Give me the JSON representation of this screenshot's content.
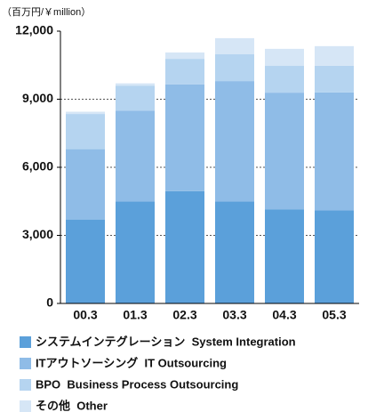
{
  "chart_data": {
    "type": "stacked_bar",
    "y_label": "（百万円/￥million）",
    "categories": [
      "00.3",
      "01.3",
      "02.3",
      "03.3",
      "04.3",
      "05.3"
    ],
    "series": [
      {
        "name": "システムインテグレーション  System Integration",
        "color": "#5ba0da",
        "values": [
          3700,
          4500,
          4950,
          4500,
          4150,
          4100
        ]
      },
      {
        "name": "ITアウトソーシング  IT Outsourcing",
        "color": "#8fbce7",
        "values": [
          3100,
          4000,
          4700,
          5300,
          5140,
          5200
        ]
      },
      {
        "name": "BPO  Business Process Outsourcing",
        "color": "#b5d4f0",
        "values": [
          1550,
          1100,
          1130,
          1180,
          1180,
          1180
        ]
      },
      {
        "name": "その他  Other",
        "color": "#d6e6f6",
        "values": [
          100,
          100,
          280,
          710,
          750,
          860
        ]
      }
    ],
    "ylim": [
      0,
      12000
    ],
    "yticks": [
      0,
      {
        "value": 3000,
        "label": "3,000"
      },
      {
        "value": 6000,
        "label": "6,000"
      },
      {
        "value": 9000,
        "label": "9,000"
      },
      {
        "value": 12000,
        "label": "12,000"
      }
    ],
    "grid": true
  }
}
